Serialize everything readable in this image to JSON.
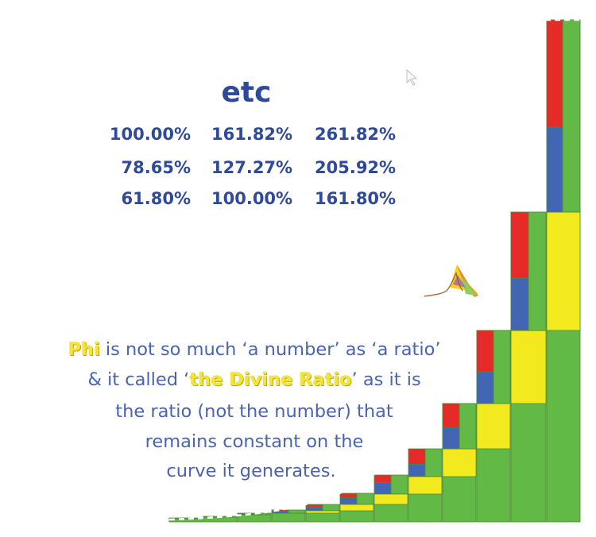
{
  "title": "etc",
  "table": {
    "row1": [
      "100.00%",
      "161.82%",
      "261.82%"
    ],
    "row2": [
      "78.65%",
      "127.27%",
      "205.92%"
    ],
    "row3": [
      "61.80%",
      "100.00%",
      "161.80%"
    ]
  },
  "caption": {
    "phi": "Phi",
    "line1_rest": " is not so much ‘a number’ as ‘a ratio’",
    "line2_start": "& it called ‘",
    "divine": "the Divine Ratio",
    "line2_end": "’ as it is",
    "line3": "the ratio (not the number) that",
    "line4": "remains constant on the",
    "line5": "curve it generates."
  },
  "colors": {
    "green": "#62b946",
    "yellow": "#f2ea1e",
    "blue": "#4366b4",
    "red": "#e52a27",
    "text": "#2f4a9a"
  },
  "icons": [
    "cursor-arrow-icon",
    "peak-logo-icon"
  ]
}
